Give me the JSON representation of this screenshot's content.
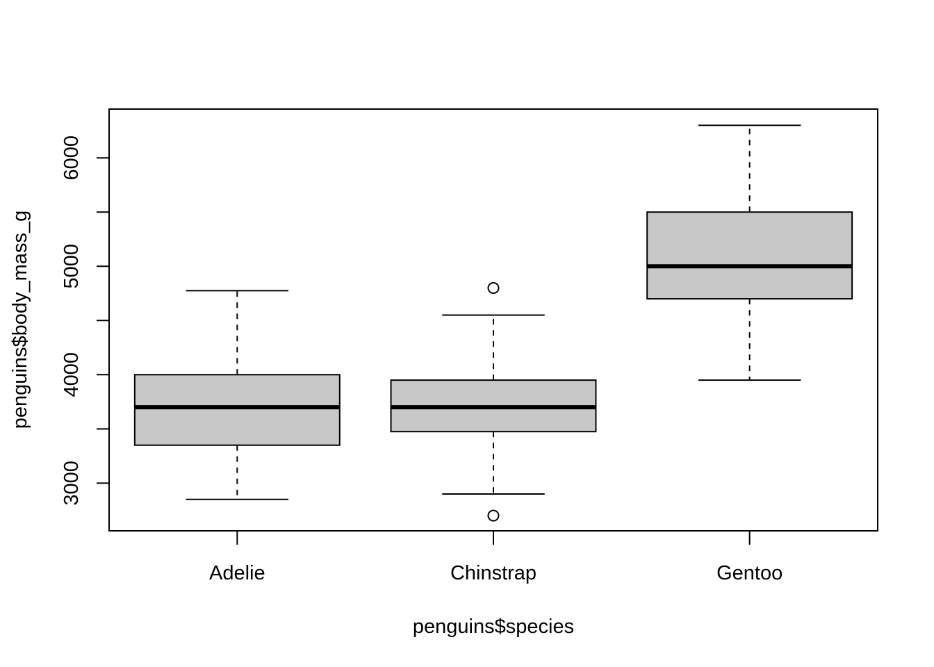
{
  "chart_data": {
    "type": "boxplot",
    "title": "",
    "xlabel": "penguins$species",
    "ylabel": "penguins$body_mass_g",
    "categories": [
      "Adelie",
      "Chinstrap",
      "Gentoo"
    ],
    "ylim": [
      2560,
      6450
    ],
    "yticks": [
      3000,
      3500,
      4000,
      4500,
      5000,
      5500,
      6000
    ],
    "yticklabels": [
      "3000",
      "",
      "4000",
      "",
      "5000",
      "",
      "6000"
    ],
    "boxes": [
      {
        "category": "Adelie",
        "whisker_low": 2850,
        "q1": 3350,
        "median": 3700,
        "q3": 4000,
        "whisker_high": 4775,
        "outliers": []
      },
      {
        "category": "Chinstrap",
        "whisker_low": 2900,
        "q1": 3475,
        "median": 3700,
        "q3": 3950,
        "whisker_high": 4550,
        "outliers": [
          4800,
          2700
        ]
      },
      {
        "category": "Gentoo",
        "whisker_low": 3950,
        "q1": 4700,
        "median": 5000,
        "q3": 5500,
        "whisker_high": 6300,
        "outliers": []
      }
    ],
    "box_fill": "#c8c8c8",
    "line_color": "#000000",
    "grid": false,
    "legend": "none"
  }
}
